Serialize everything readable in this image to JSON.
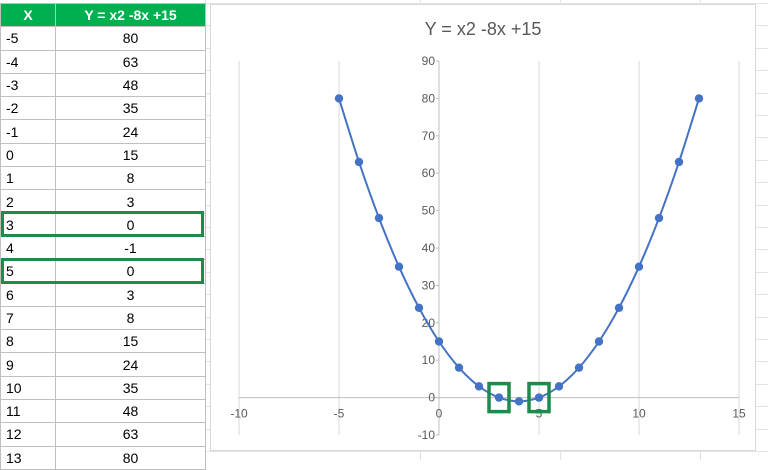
{
  "table": {
    "headers": [
      "X",
      "Y = x2 -8x +15"
    ],
    "rows": [
      [
        "-5",
        "80"
      ],
      [
        "-4",
        "63"
      ],
      [
        "-3",
        "48"
      ],
      [
        "-2",
        "35"
      ],
      [
        "-1",
        "24"
      ],
      [
        "0",
        "15"
      ],
      [
        "1",
        "8"
      ],
      [
        "2",
        "3"
      ],
      [
        "3",
        "0"
      ],
      [
        "4",
        "-1"
      ],
      [
        "5",
        "0"
      ],
      [
        "6",
        "3"
      ],
      [
        "7",
        "8"
      ],
      [
        "8",
        "15"
      ],
      [
        "9",
        "24"
      ],
      [
        "10",
        "35"
      ],
      [
        "11",
        "48"
      ],
      [
        "12",
        "63"
      ],
      [
        "13",
        "80"
      ]
    ],
    "highlighted_x": [
      "3",
      "5"
    ],
    "header_color": "#00b050",
    "highlight_color": "#1e8a4b"
  },
  "chart_data": {
    "type": "scatter",
    "title": "Y = x2 -8x +15",
    "x": [
      -5,
      -4,
      -3,
      -2,
      -1,
      0,
      1,
      2,
      3,
      4,
      5,
      6,
      7,
      8,
      9,
      10,
      11,
      12,
      13
    ],
    "y": [
      80,
      63,
      48,
      35,
      24,
      15,
      8,
      3,
      0,
      -1,
      0,
      3,
      8,
      15,
      24,
      35,
      48,
      63,
      80
    ],
    "xlim": [
      -10,
      15
    ],
    "ylim": [
      -10,
      90
    ],
    "x_ticks": [
      -10,
      -5,
      0,
      5,
      10,
      15
    ],
    "y_ticks": [
      -10,
      0,
      10,
      20,
      30,
      40,
      50,
      60,
      70,
      80,
      90
    ],
    "grid": "vertical",
    "smooth_line": true,
    "series_color": "#4472c4",
    "highlight_points": [
      [
        3,
        0
      ],
      [
        5,
        0
      ]
    ],
    "highlight_color": "#1e8a4b"
  }
}
